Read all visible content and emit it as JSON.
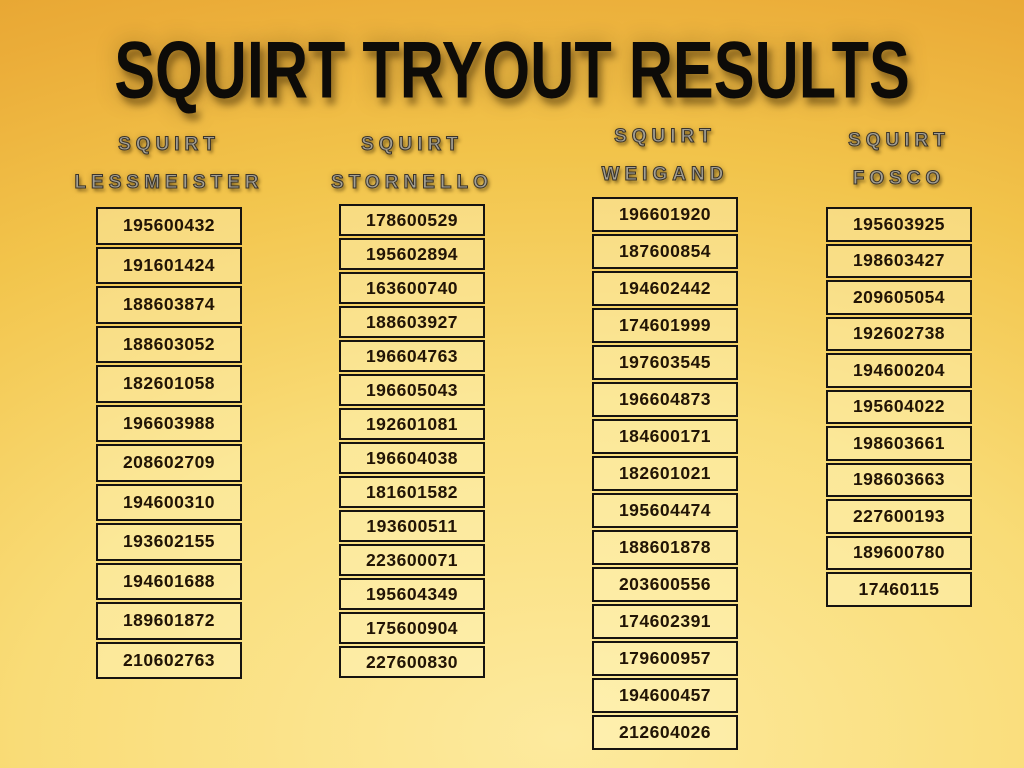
{
  "title": "SQUIRT TRYOUT RESULTS",
  "colors": {
    "background_top": "#E9A937",
    "background_bottom": "#FDEA9E",
    "cell_border": "#161310",
    "cell_fill": "#F8D868",
    "header_text": "#A39F92",
    "title_text": "#0D0B08"
  },
  "columns": [
    {
      "group": "SQUIRT",
      "name": "LESSMEISTER",
      "values": [
        "195600432",
        "191601424",
        "188603874",
        "188603052",
        "182601058",
        "196603988",
        "208602709",
        "194600310",
        "193602155",
        "194601688",
        "189601872",
        "210602763"
      ]
    },
    {
      "group": "SQUIRT",
      "name": "STORNELLO",
      "values": [
        "178600529",
        "195602894",
        "163600740",
        "188603927",
        "196604763",
        "196605043",
        "192601081",
        "196604038",
        "181601582",
        "193600511",
        "223600071",
        "195604349",
        "175600904",
        "227600830"
      ]
    },
    {
      "group": "SQUIRT",
      "name": "WEIGAND",
      "values": [
        "196601920",
        "187600854",
        "194602442",
        "174601999",
        "197603545",
        "196604873",
        "184600171",
        "182601021",
        "195604474",
        "188601878",
        "203600556",
        "174602391",
        "179600957",
        "194600457",
        "212604026"
      ]
    },
    {
      "group": "SQUIRT",
      "name": "FOSCO",
      "values": [
        "195603925",
        "198603427",
        "209605054",
        "192602738",
        "194600204",
        "195604022",
        "198603661",
        "198603663",
        "227600193",
        "189600780",
        "17460115"
      ]
    }
  ]
}
